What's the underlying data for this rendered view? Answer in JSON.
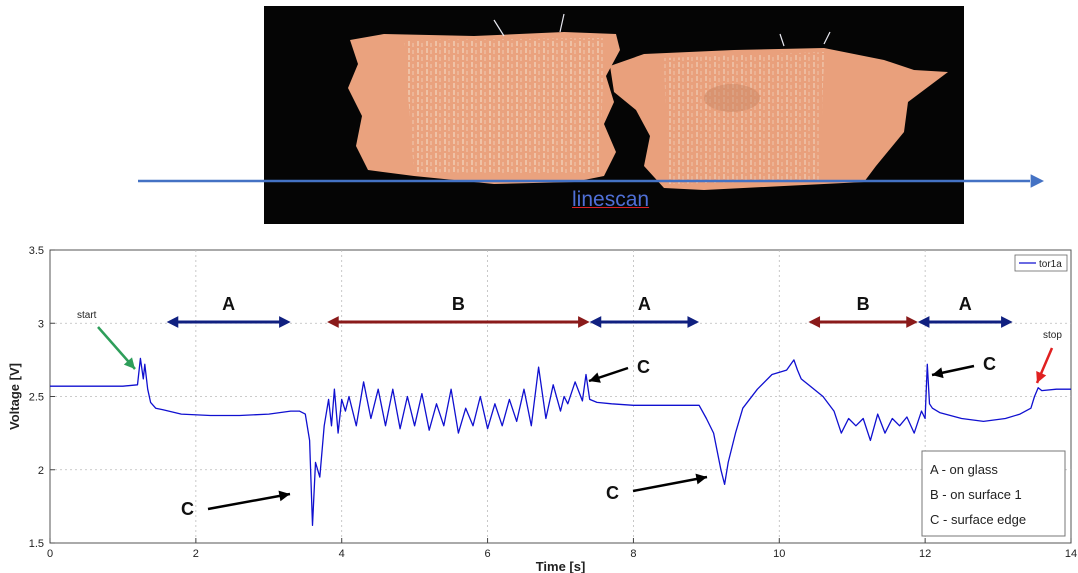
{
  "photo": {
    "scan_label": "linescan",
    "arrow_color": "#4472c4",
    "background_color": "#050505",
    "tissue_color": "#eaa27e"
  },
  "chart_data": {
    "type": "line",
    "xlabel": "Time [s]",
    "ylabel": "Voltage [V]",
    "xlim": [
      0,
      14
    ],
    "ylim": [
      1.5,
      3.5
    ],
    "x_ticks": [
      0,
      2,
      4,
      6,
      8,
      10,
      12,
      14
    ],
    "y_ticks": [
      1.5,
      2,
      2.5,
      3,
      3.5
    ],
    "grid": true,
    "legend_position": "top-right",
    "series": [
      {
        "name": "tor1a",
        "color": "#1010d0",
        "x": [
          0,
          0.5,
          1.0,
          1.2,
          1.24,
          1.28,
          1.3,
          1.34,
          1.38,
          1.45,
          1.55,
          1.8,
          2.2,
          2.6,
          3.0,
          3.3,
          3.42,
          3.5,
          3.56,
          3.6,
          3.64,
          3.7,
          3.76,
          3.82,
          3.86,
          3.9,
          3.95,
          4.0,
          4.05,
          4.1,
          4.2,
          4.3,
          4.4,
          4.5,
          4.6,
          4.7,
          4.8,
          4.9,
          5.0,
          5.1,
          5.2,
          5.3,
          5.4,
          5.5,
          5.6,
          5.7,
          5.8,
          5.9,
          6.0,
          6.1,
          6.2,
          6.3,
          6.4,
          6.5,
          6.6,
          6.7,
          6.8,
          6.9,
          7.0,
          7.05,
          7.1,
          7.2,
          7.3,
          7.35,
          7.4,
          7.5,
          7.7,
          8.0,
          8.5,
          8.9,
          9.0,
          9.1,
          9.2,
          9.25,
          9.3,
          9.4,
          9.5,
          9.7,
          9.9,
          10.1,
          10.2,
          10.25,
          10.3,
          10.4,
          10.6,
          10.75,
          10.85,
          10.95,
          11.05,
          11.15,
          11.25,
          11.35,
          11.45,
          11.55,
          11.65,
          11.75,
          11.85,
          11.95,
          12.0,
          12.03,
          12.06,
          12.1,
          12.2,
          12.5,
          12.8,
          13.1,
          13.3,
          13.45,
          13.5,
          13.55,
          13.6,
          13.8,
          14.0
        ],
        "values": [
          2.57,
          2.57,
          2.57,
          2.58,
          2.76,
          2.62,
          2.72,
          2.55,
          2.46,
          2.42,
          2.41,
          2.38,
          2.37,
          2.37,
          2.38,
          2.4,
          2.4,
          2.38,
          2.2,
          1.62,
          2.05,
          1.95,
          2.3,
          2.48,
          2.3,
          2.55,
          2.25,
          2.48,
          2.4,
          2.5,
          2.3,
          2.6,
          2.35,
          2.55,
          2.3,
          2.55,
          2.28,
          2.5,
          2.3,
          2.52,
          2.27,
          2.45,
          2.3,
          2.55,
          2.25,
          2.42,
          2.3,
          2.5,
          2.28,
          2.45,
          2.3,
          2.48,
          2.33,
          2.55,
          2.3,
          2.7,
          2.35,
          2.58,
          2.4,
          2.5,
          2.45,
          2.6,
          2.47,
          2.65,
          2.48,
          2.46,
          2.45,
          2.44,
          2.44,
          2.44,
          2.35,
          2.25,
          2.0,
          1.9,
          2.05,
          2.25,
          2.42,
          2.55,
          2.65,
          2.68,
          2.75,
          2.68,
          2.62,
          2.58,
          2.5,
          2.4,
          2.25,
          2.35,
          2.3,
          2.35,
          2.2,
          2.38,
          2.25,
          2.35,
          2.3,
          2.36,
          2.25,
          2.4,
          2.35,
          2.72,
          2.45,
          2.42,
          2.39,
          2.35,
          2.33,
          2.35,
          2.38,
          2.42,
          2.5,
          2.56,
          2.54,
          2.55,
          2.55
        ]
      }
    ],
    "regions": [
      {
        "label": "A",
        "from": 1.6,
        "to": 3.3,
        "color": "#102080"
      },
      {
        "label": "B",
        "from": 3.8,
        "to": 7.4,
        "color": "#8a1a1a"
      },
      {
        "label": "A",
        "from": 7.4,
        "to": 8.9,
        "color": "#102080"
      },
      {
        "label": "B",
        "from": 10.4,
        "to": 11.9,
        "color": "#8a1a1a"
      },
      {
        "label": "A",
        "from": 11.9,
        "to": 13.2,
        "color": "#102080"
      }
    ],
    "annotations": [
      {
        "text": "start",
        "color": "#2e9e5a"
      },
      {
        "text": "stop",
        "color": "#e02020"
      },
      {
        "text": "C"
      },
      {
        "text": "C"
      },
      {
        "text": "C"
      },
      {
        "text": "C"
      }
    ],
    "key_box": [
      "A - on glass",
      "B - on surface 1",
      "C - surface edge"
    ]
  }
}
